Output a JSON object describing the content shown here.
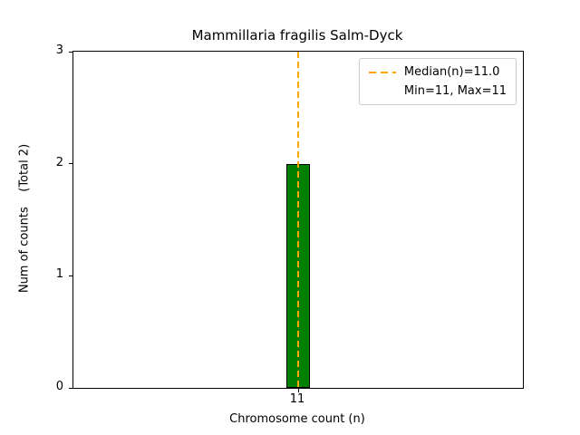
{
  "chart_data": {
    "type": "bar",
    "title": "Mammillaria fragilis Salm-Dyck",
    "xlabel": "Chromosome count (n)",
    "ylabel": "Num of counts    (Total 2)",
    "categories": [
      "11"
    ],
    "values": [
      2
    ],
    "ylim": [
      0,
      3
    ],
    "yticks": [
      "0",
      "1",
      "2",
      "3"
    ],
    "xticks": [
      "11"
    ],
    "grid": false,
    "bar_color": "#008000",
    "bar_edge_color": "#000000",
    "median": {
      "value": 11.0,
      "line_color": "#ffa500",
      "line_style": "dashed"
    },
    "legend": {
      "position": "top-right",
      "entries": [
        {
          "label": "Median(n)=11.0",
          "marker": "dashed-line",
          "marker_color": "#ffa500"
        },
        {
          "label": "Min=11, Max=11",
          "marker": "none"
        }
      ]
    }
  }
}
